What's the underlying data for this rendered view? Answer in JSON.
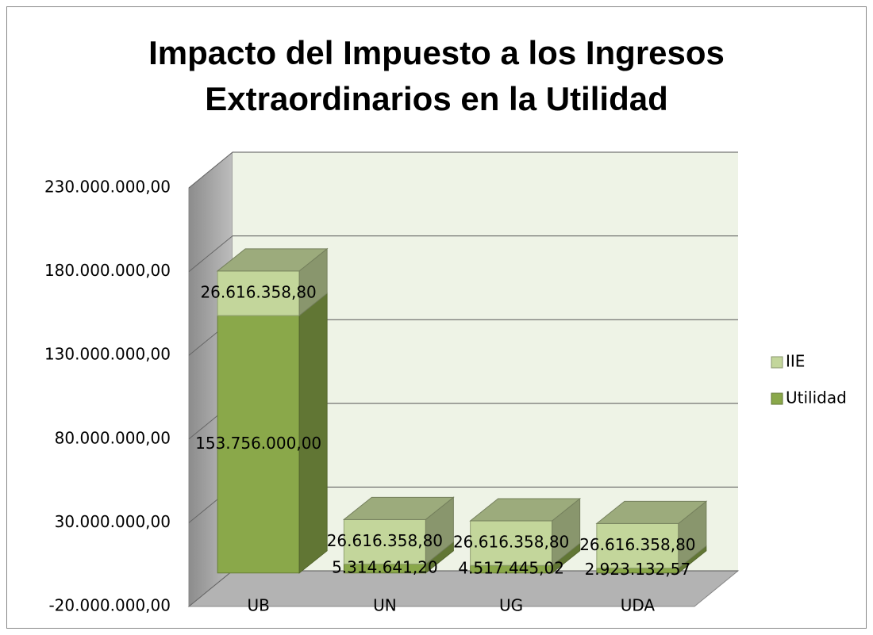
{
  "chart_data": {
    "type": "bar3d_stacked",
    "title": "Impacto del Impuesto a los Ingresos Extraordinarios en la Utilidad",
    "categories": [
      "UB",
      "UN",
      "UG",
      "UDA"
    ],
    "series": [
      {
        "name": "Utilidad",
        "color": "#8aa84a",
        "values": [
          153756000,
          5314641.2,
          4517445.02,
          2923132.57
        ],
        "value_labels": [
          "153.756.000,00",
          "5.314.641,20",
          "4.517.445,02",
          "2.923.132,57"
        ]
      },
      {
        "name": "IIE",
        "color": "#c3d69b",
        "values": [
          26616358.8,
          26616358.8,
          26616358.8,
          26616358.8
        ],
        "value_labels": [
          "26.616.358,80",
          "26.616.358,80",
          "26.616.358,80",
          "26.616.358,80"
        ]
      }
    ],
    "ylim": [
      -20000000,
      230000000
    ],
    "yticks": [
      {
        "value": -20000000,
        "label": "-20.000.000,00"
      },
      {
        "value": 30000000,
        "label": "30.000.000,00"
      },
      {
        "value": 80000000,
        "label": "80.000.000,00"
      },
      {
        "value": 130000000,
        "label": "130.000.000,00"
      },
      {
        "value": 180000000,
        "label": "180.000.000,00"
      },
      {
        "value": 230000000,
        "label": "230.000.000,00"
      }
    ],
    "grid": true
  }
}
